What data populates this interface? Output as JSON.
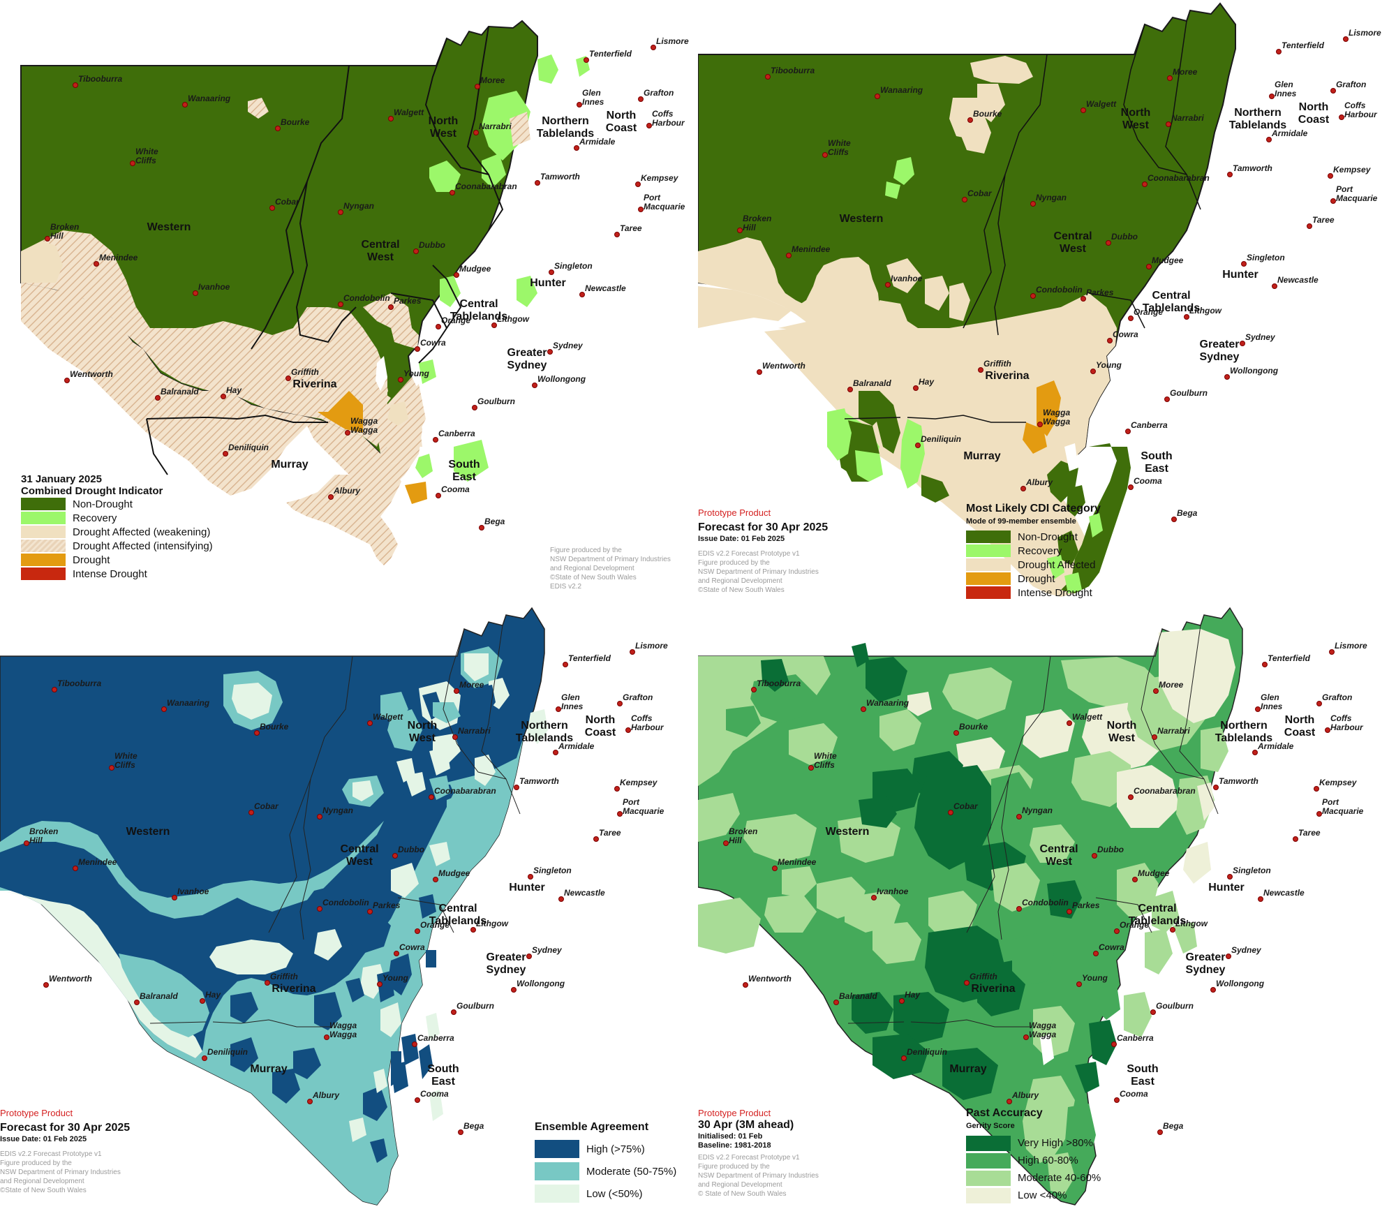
{
  "palette": {
    "non_drought": "#3f6e0a",
    "recovery": "#9cf76a",
    "drought_affected": "#f0e0c0",
    "drought": "#e39b11",
    "intense_drought": "#c8280f",
    "agree_high": "#124e80",
    "agree_moderate": "#78c8c4",
    "agree_low": "#e4f5e6",
    "acc_very_high": "#0a6e36",
    "acc_high": "#45aa5a",
    "acc_moderate": "#a8dc96",
    "acc_low": "#eef0d8"
  },
  "towns": [
    {
      "name": "Tibooburra"
    },
    {
      "name": "Wanaaring"
    },
    {
      "name": "Bourke"
    },
    {
      "name": "White Cliffs"
    },
    {
      "name": "Broken Hill"
    },
    {
      "name": "Menindee"
    },
    {
      "name": "Ivanhoe"
    },
    {
      "name": "Cobar"
    },
    {
      "name": "Wentworth"
    },
    {
      "name": "Balranald"
    },
    {
      "name": "Hay"
    },
    {
      "name": "Deniliquin"
    },
    {
      "name": "Griffith"
    },
    {
      "name": "Albury"
    },
    {
      "name": "Wagga Wagga"
    },
    {
      "name": "Young"
    },
    {
      "name": "Cowra"
    },
    {
      "name": "Orange"
    },
    {
      "name": "Parkes"
    },
    {
      "name": "Condobolin"
    },
    {
      "name": "Nyngan"
    },
    {
      "name": "Dubbo"
    },
    {
      "name": "Mudgee"
    },
    {
      "name": "Lithgow"
    },
    {
      "name": "Coonabarabran"
    },
    {
      "name": "Narrabri"
    },
    {
      "name": "Walgett"
    },
    {
      "name": "Moree"
    },
    {
      "name": "Tamworth"
    },
    {
      "name": "Armidale"
    },
    {
      "name": "Glen Innes"
    },
    {
      "name": "Tenterfield"
    },
    {
      "name": "Lismore"
    },
    {
      "name": "Grafton"
    },
    {
      "name": "Coffs Harbour"
    },
    {
      "name": "Kempsey"
    },
    {
      "name": "Port Macquarie"
    },
    {
      "name": "Taree"
    },
    {
      "name": "Singleton"
    },
    {
      "name": "Newcastle"
    },
    {
      "name": "Sydney"
    },
    {
      "name": "Wollongong"
    },
    {
      "name": "Goulburn"
    },
    {
      "name": "Canberra"
    },
    {
      "name": "Cooma"
    },
    {
      "name": "Bega"
    }
  ],
  "regions": [
    {
      "name": "Western"
    },
    {
      "name": "North West"
    },
    {
      "name": "Northern Tablelands"
    },
    {
      "name": "North Coast"
    },
    {
      "name": "Central West"
    },
    {
      "name": "Hunter"
    },
    {
      "name": "Central Tablelands"
    },
    {
      "name": "Greater Sydney"
    },
    {
      "name": "Riverina"
    },
    {
      "name": "Murray"
    },
    {
      "name": "South East"
    }
  ],
  "panel1": {
    "date": "31 January 2025",
    "title": "Combined Drought Indicator",
    "legend": [
      {
        "label": "Non-Drought",
        "color": "#3f6e0a"
      },
      {
        "label": "Recovery",
        "color": "#9cf76a"
      },
      {
        "label": "Drought Affected (weakening)",
        "color": "#f0e0c0"
      },
      {
        "label": "Drought Affected (intensifying)",
        "color": "#f0e0c0",
        "hatch": true
      },
      {
        "label": "Drought",
        "color": "#e39b11"
      },
      {
        "label": "Intense Drought",
        "color": "#c8280f"
      }
    ],
    "credit": [
      "Figure produced by the",
      "NSW Department of Primary Industries",
      "and Regional Development",
      "©State of New South Wales",
      "EDIS v2.2"
    ]
  },
  "panel2": {
    "prototype": "Prototype Product",
    "title": "Forecast for 30 Apr 2025",
    "issue": "Issue Date: 01 Feb 2025",
    "credit": [
      "EDIS v2.2 Forecast Prototype v1",
      "Figure produced by the",
      "NSW Department of Primary Industries",
      "and Regional Development",
      "©State of New South Wales"
    ],
    "legend_title": "Most Likely CDI Category",
    "legend_sub": "Mode of 99-member ensemble",
    "legend": [
      {
        "label": "Non-Drought",
        "color": "#3f6e0a"
      },
      {
        "label": "Recovery",
        "color": "#9cf76a"
      },
      {
        "label": "Drought Affected",
        "color": "#f0e0c0"
      },
      {
        "label": "Drought",
        "color": "#e39b11"
      },
      {
        "label": "Intense Drought",
        "color": "#c8280f"
      }
    ]
  },
  "panel3": {
    "prototype": "Prototype Product",
    "title": "Forecast for 30 Apr 2025",
    "issue": "Issue Date: 01 Feb 2025",
    "credit": [
      "EDIS v2.2 Forecast Prototype v1",
      "Figure produced by the",
      "NSW Department of Primary Industries",
      "and Regional Development",
      "©State of New South Wales"
    ],
    "legend_title": "Ensemble Agreement",
    "legend": [
      {
        "label": "High (>75%)",
        "color": "#124e80"
      },
      {
        "label": "Moderate (50-75%)",
        "color": "#78c8c4"
      },
      {
        "label": "Low (<50%)",
        "color": "#e4f5e6"
      }
    ]
  },
  "panel4": {
    "prototype": "Prototype Product",
    "title": "30 Apr (3M ahead)",
    "init": "Initialised: 01 Feb",
    "baseline": "Baseline: 1981-2018",
    "credit": [
      "EDIS v2.2 Forecast Prototype v1",
      "Figure produced by the",
      "NSW Department of Primary Industries",
      "and Regional Development",
      "© State of New South Wales"
    ],
    "legend_title": "Past Accuracy",
    "legend_sub": "Gerrity Score",
    "legend": [
      {
        "label": "Very High >80%",
        "color": "#0a6e36"
      },
      {
        "label": "High 60-80%",
        "color": "#45aa5a"
      },
      {
        "label": "Moderate 40-60%",
        "color": "#a8dc96"
      },
      {
        "label": "Low <40%",
        "color": "#eef0d8"
      }
    ]
  }
}
